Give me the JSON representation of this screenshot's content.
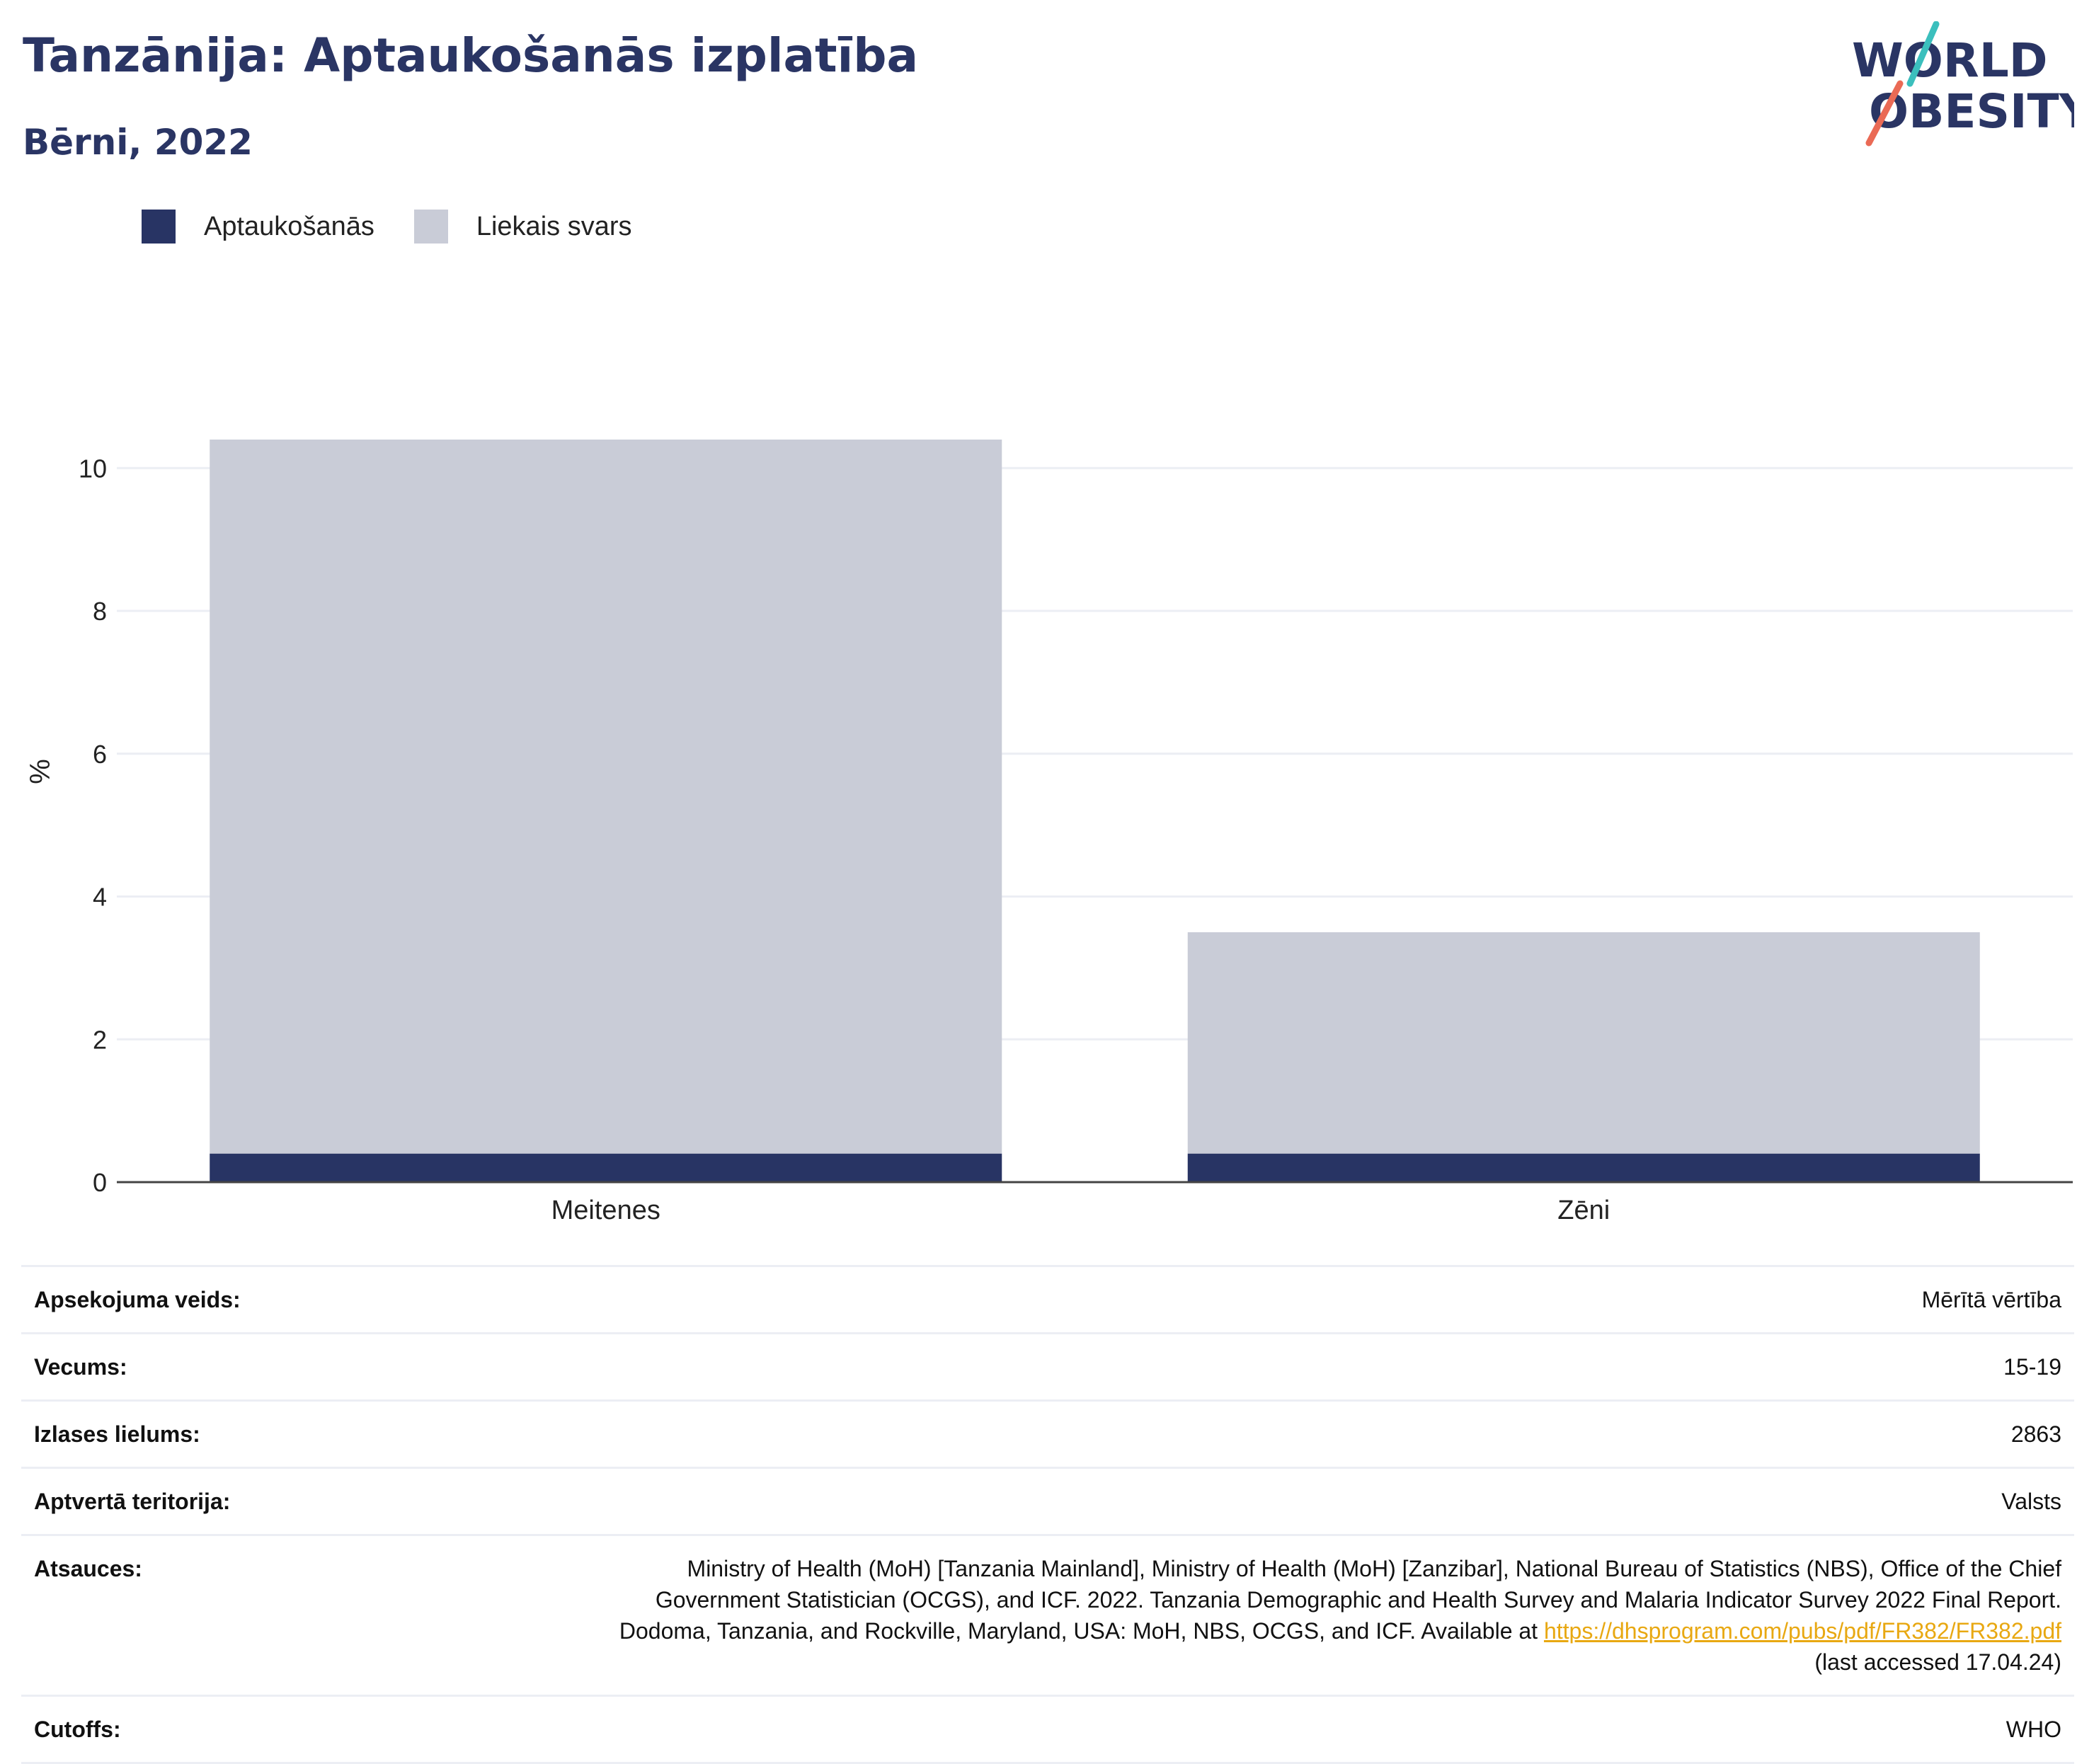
{
  "header": {
    "title": "Tanzānija: Aptaukošanās izplatība",
    "subtitle": "Bērni, 2022"
  },
  "logo": {
    "line1": "WORLD",
    "line2": "OBESITY"
  },
  "legend": [
    {
      "label": "Aptaukošanās",
      "color": "#283464"
    },
    {
      "label": "Liekais svars",
      "color": "#c9ccd7"
    }
  ],
  "chart_data": {
    "type": "bar",
    "stacked": true,
    "categories": [
      "Meitenes",
      "Zēni"
    ],
    "series": [
      {
        "name": "Aptaukošanās",
        "values": [
          0.4,
          0.4
        ],
        "color": "#283464"
      },
      {
        "name": "Liekais svars",
        "values": [
          10.0,
          3.1
        ],
        "color": "#c9ccd7"
      }
    ],
    "ylabel": "%",
    "ylim": [
      0,
      11.5
    ],
    "yticks": [
      0,
      2,
      4,
      6,
      8,
      10
    ],
    "grid": true
  },
  "info": {
    "rows": [
      {
        "label": "Apsekojuma veids:",
        "value": "Mērītā vērtība"
      },
      {
        "label": "Vecums:",
        "value": "15-19"
      },
      {
        "label": "Izlases lielums:",
        "value": "2863"
      },
      {
        "label": "Aptvertā teritorija:",
        "value": "Valsts"
      }
    ],
    "reference": {
      "label": "Atsauces:",
      "text": "Ministry of Health (MoH) [Tanzania Mainland], Ministry of Health (MoH) [Zanzibar], National Bureau of Statistics (NBS), Office of the Chief Government Statistician (OCGS), and ICF. 2022. Tanzania Demographic and Health Survey and Malaria Indicator Survey 2022 Final Report. Dodoma, Tanzania, and Rockville, Maryland, USA: MoH, NBS, OCGS, and ICF. Available at ",
      "link": "https://dhsprogram.com/pubs/pdf/FR382/FR382.pdf",
      "suffix": " (last accessed 17.04.24)"
    },
    "cutoffs": {
      "label": "Cutoffs:",
      "value": "WHO"
    }
  }
}
